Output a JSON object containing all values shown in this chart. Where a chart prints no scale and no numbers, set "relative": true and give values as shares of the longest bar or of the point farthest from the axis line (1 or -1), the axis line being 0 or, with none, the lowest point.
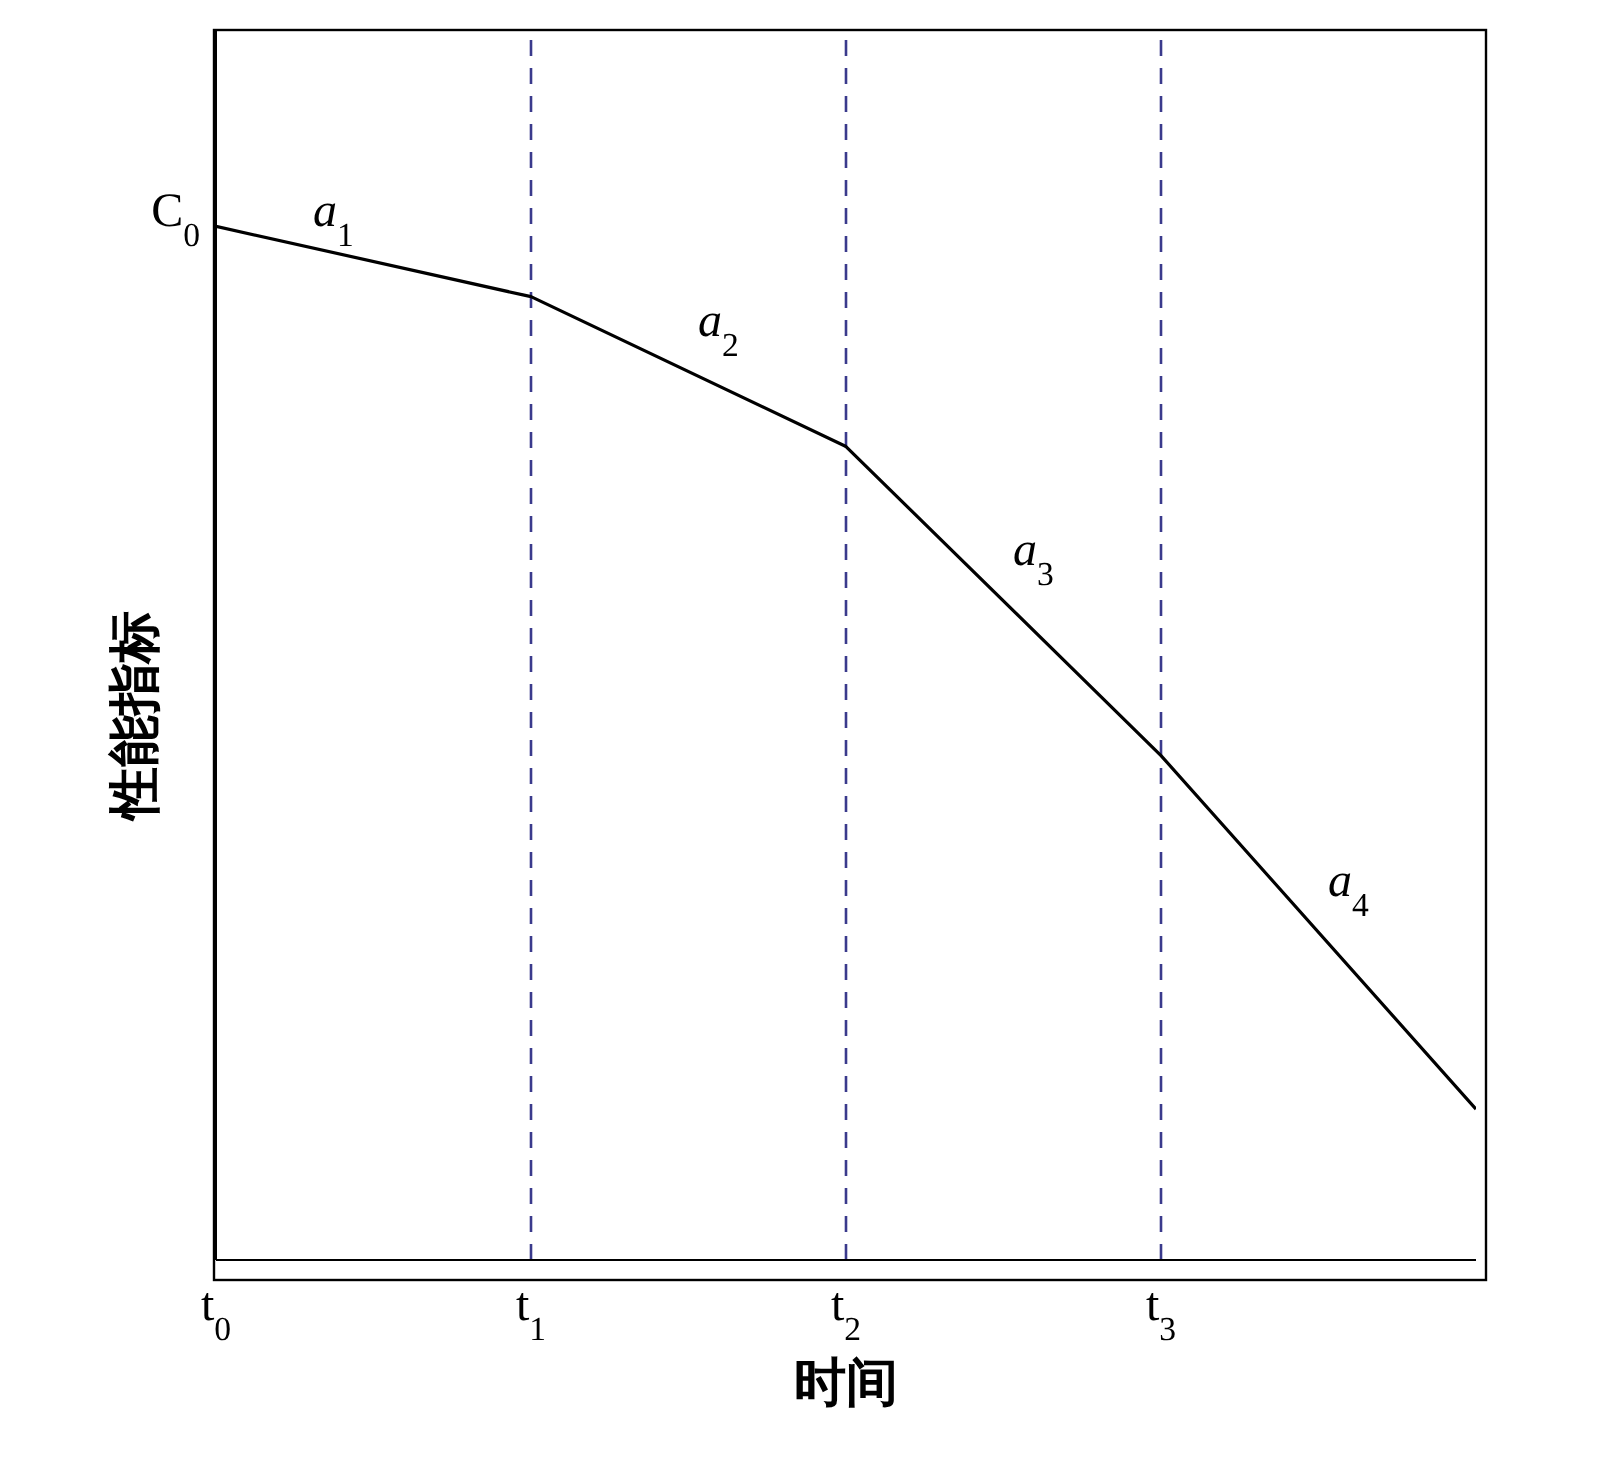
{
  "chart_data": {
    "type": "line",
    "relative": true,
    "xlabel": "时间",
    "ylabel": "性能指标",
    "categories": [
      "t$_{0}$",
      "t$_{1}$",
      "t$_{2}$",
      "t$_{3}$",
      null
    ],
    "series": [
      {
        "color": "#000000",
        "values": [
          1,
          0.932,
          0.787,
          0.488,
          0.146
        ]
      }
    ],
    "ref_lines": [
      {
        "axis": "x",
        "value": "t$_{1}$",
        "color": "#3a3a8c",
        "line_style": "dashed"
      },
      {
        "axis": "x",
        "value": "t$_{2}$",
        "color": "#3a3a8c",
        "line_style": "dashed"
      },
      {
        "axis": "x",
        "value": "t$_{3}$",
        "color": "#3a3a8c",
        "line_style": "dashed"
      }
    ],
    "annotations": [
      {
        "text": "C$_{0}$",
        "x": "t$_{0}$",
        "y": 1
      },
      "a$_{1}$",
      "a$_{2}$",
      "a$_{3}$",
      "a$_{4}$"
    ],
    "marker": "none",
    "grid": false,
    "legend": false
  }
}
